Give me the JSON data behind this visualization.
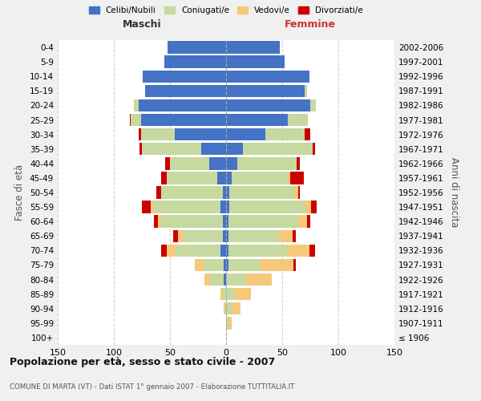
{
  "age_groups": [
    "100+",
    "95-99",
    "90-94",
    "85-89",
    "80-84",
    "75-79",
    "70-74",
    "65-69",
    "60-64",
    "55-59",
    "50-54",
    "45-49",
    "40-44",
    "35-39",
    "30-34",
    "25-29",
    "20-24",
    "15-19",
    "10-14",
    "5-9",
    "0-4"
  ],
  "birth_years": [
    "≤ 1906",
    "1907-1911",
    "1912-1916",
    "1917-1921",
    "1922-1926",
    "1927-1931",
    "1932-1936",
    "1937-1941",
    "1942-1946",
    "1947-1951",
    "1952-1956",
    "1957-1961",
    "1962-1966",
    "1967-1971",
    "1972-1976",
    "1977-1981",
    "1982-1986",
    "1987-1991",
    "1992-1996",
    "1997-2001",
    "2002-2006"
  ],
  "male_celibi": [
    0,
    0,
    0,
    0,
    2,
    2,
    5,
    3,
    3,
    5,
    3,
    8,
    15,
    22,
    46,
    76,
    78,
    72,
    74,
    55,
    52
  ],
  "male_coniugati": [
    0,
    0,
    1,
    3,
    12,
    18,
    40,
    35,
    55,
    60,
    55,
    45,
    35,
    53,
    30,
    9,
    4,
    0,
    0,
    0,
    0
  ],
  "male_vedovi": [
    0,
    0,
    1,
    2,
    5,
    8,
    8,
    5,
    3,
    2,
    0,
    0,
    0,
    0,
    0,
    0,
    0,
    0,
    0,
    0,
    0
  ],
  "male_divorziati": [
    0,
    0,
    0,
    0,
    0,
    0,
    5,
    4,
    3,
    8,
    4,
    5,
    4,
    2,
    2,
    1,
    0,
    0,
    0,
    0,
    0
  ],
  "female_nubili": [
    0,
    0,
    0,
    0,
    0,
    2,
    2,
    2,
    2,
    3,
    3,
    5,
    10,
    15,
    35,
    55,
    75,
    70,
    74,
    52,
    48
  ],
  "female_coniugate": [
    0,
    2,
    5,
    8,
    18,
    28,
    52,
    45,
    62,
    68,
    58,
    50,
    53,
    62,
    35,
    18,
    5,
    2,
    0,
    0,
    0
  ],
  "female_vedove": [
    0,
    3,
    8,
    14,
    23,
    30,
    20,
    12,
    8,
    5,
    3,
    2,
    0,
    0,
    0,
    0,
    0,
    0,
    0,
    0,
    0
  ],
  "female_divorziate": [
    0,
    0,
    0,
    0,
    0,
    2,
    5,
    3,
    3,
    5,
    2,
    12,
    3,
    2,
    5,
    0,
    0,
    0,
    0,
    0,
    0
  ],
  "color_celibi": "#4472C4",
  "color_coniugati": "#C5D9A0",
  "color_vedovi": "#F5C87A",
  "color_divorziati": "#CC0000",
  "title": "Popolazione per età, sesso e stato civile - 2007",
  "subtitle": "COMUNE DI MARTA (VT) - Dati ISTAT 1° gennaio 2007 - Elaborazione TUTTITALIA.IT",
  "label_maschi": "Maschi",
  "label_femmine": "Femmine",
  "ylabel_left": "Fasce di età",
  "ylabel_right": "Anni di nascita",
  "legend_labels": [
    "Celibi/Nubili",
    "Coniugati/e",
    "Vedovi/e",
    "Divorziati/e"
  ],
  "xlim": 150,
  "bg_color": "#f0f0f0",
  "plot_bg_color": "#ffffff"
}
